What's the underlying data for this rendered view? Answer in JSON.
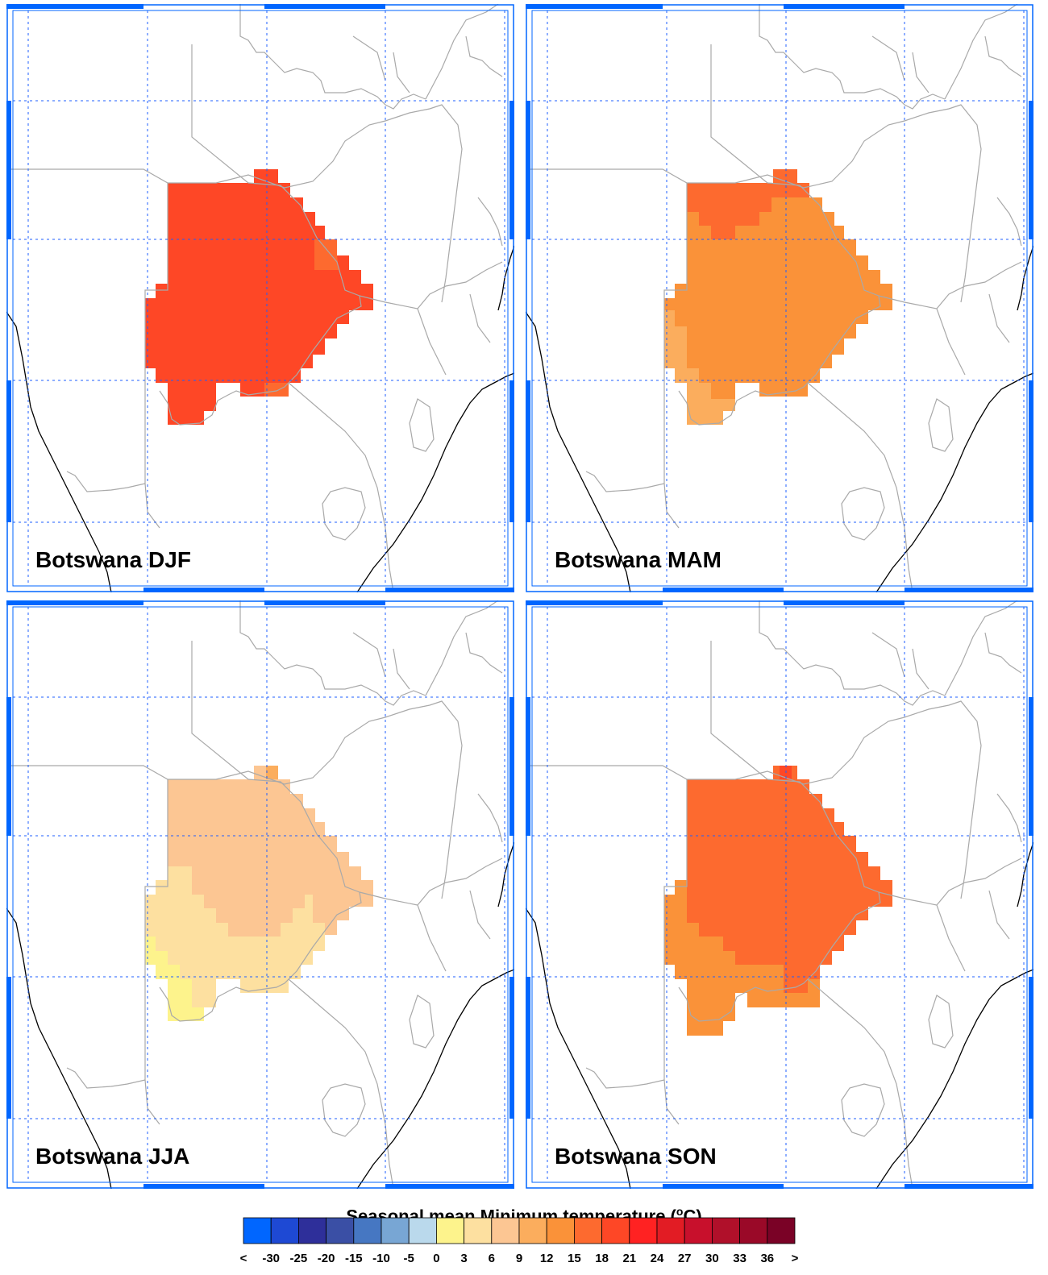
{
  "panels": [
    {
      "label": "Botswana DJF",
      "season": "DJF",
      "regions": [
        {
          "name": "whole-country",
          "level": 18
        },
        {
          "name": "east-notch",
          "level": 15
        },
        {
          "name": "south-notch",
          "level": 15
        }
      ]
    },
    {
      "label": "Botswana MAM",
      "season": "MAM",
      "regions": [
        {
          "name": "north-strip",
          "level": 15
        },
        {
          "name": "main-body",
          "level": 12
        },
        {
          "name": "southwest",
          "level": 9
        }
      ]
    },
    {
      "label": "Botswana JJA",
      "season": "JJA",
      "regions": [
        {
          "name": "north-east",
          "level": 6
        },
        {
          "name": "central-south",
          "level": 3
        },
        {
          "name": "southwest-tip",
          "level": 0
        },
        {
          "name": "north-spot",
          "level": 9
        }
      ]
    },
    {
      "label": "Botswana SON",
      "season": "SON",
      "regions": [
        {
          "name": "main-body",
          "level": 15
        },
        {
          "name": "west-south",
          "level": 12
        },
        {
          "name": "north-spot",
          "level": 18
        }
      ]
    }
  ],
  "legend": {
    "title_prefix": "Seasonal mean Minimum temperature (",
    "title_unit_sup": "o",
    "title_suffix": "C)",
    "labels": [
      "<",
      "-30",
      "-25",
      "-20",
      "-15",
      "-10",
      "-5",
      "0",
      "3",
      "6",
      "9",
      "12",
      "15",
      "18",
      "21",
      "24",
      "27",
      "30",
      "33",
      "36",
      ">"
    ],
    "colors": [
      "#0066ff",
      "#1e49d4",
      "#2e2f9a",
      "#3a4fa5",
      "#4677c2",
      "#78a6d4",
      "#bad9ec",
      "#fdf38c",
      "#fde0a0",
      "#fcc693",
      "#fbad5d",
      "#fa9239",
      "#fd6a2f",
      "#fe4726",
      "#ff2222",
      "#e21c24",
      "#c8102c",
      "#b0102a",
      "#9a0928",
      "#7a0226"
    ],
    "level_map": {
      "0": 7,
      "3": 8,
      "6": 9,
      "9": 10,
      "12": 11,
      "15": 12,
      "18": 13
    }
  },
  "map_style": {
    "country_line_color": "#a9a9a9",
    "coast_line_color": "#000000",
    "grid_line_color": "#1f5fff",
    "frame_color": "#0066ff"
  }
}
